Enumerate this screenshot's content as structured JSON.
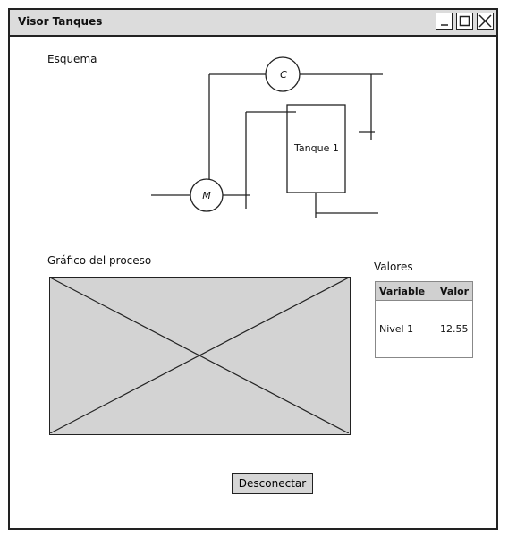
{
  "window": {
    "title": "Visor Tanques",
    "controls": {
      "minimize": "minimize-icon",
      "maximize": "maximize-icon",
      "close": "close-icon"
    }
  },
  "schema": {
    "label": "Esquema",
    "compressor_label": "C",
    "motor_label": "M",
    "tank_label": "Tanque 1"
  },
  "process": {
    "label": "Gráfico del proceso",
    "placeholder_icon": "image-placeholder-icon"
  },
  "values": {
    "label": "Valores",
    "headers": [
      "Variable",
      "Valor"
    ],
    "rows": [
      {
        "variable": "Nivel 1",
        "value": "12.55"
      }
    ]
  },
  "actions": {
    "disconnect_label": "Desconectar"
  }
}
